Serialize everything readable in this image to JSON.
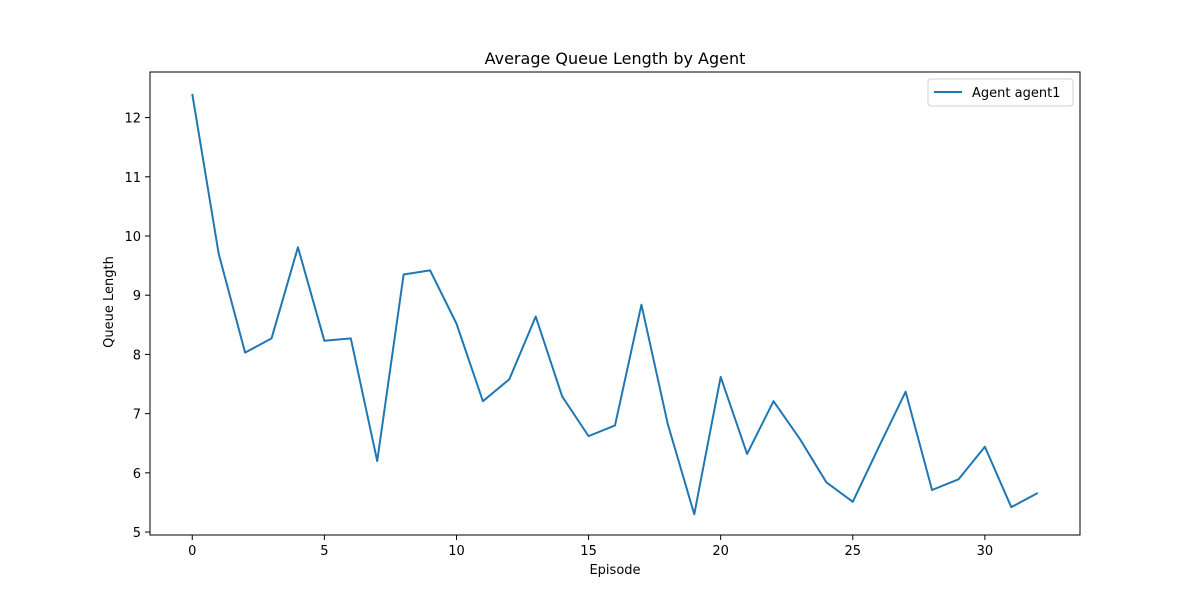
{
  "chart_data": {
    "type": "line",
    "title": "Average Queue Length by Agent",
    "xlabel": "Episode",
    "ylabel": "Queue Length",
    "xlim": [
      -1.6,
      33.6
    ],
    "ylim": [
      4.95,
      12.77
    ],
    "xticks": [
      0,
      5,
      10,
      15,
      20,
      25,
      30
    ],
    "yticks": [
      5,
      6,
      7,
      8,
      9,
      10,
      11,
      12
    ],
    "grid": false,
    "legend_position": "top-right",
    "series": [
      {
        "name": "Agent agent1",
        "color": "#1f77b4",
        "x": [
          0,
          1,
          2,
          3,
          4,
          5,
          6,
          7,
          8,
          9,
          10,
          11,
          12,
          13,
          14,
          15,
          16,
          17,
          18,
          19,
          20,
          21,
          22,
          23,
          24,
          25,
          26,
          27,
          28,
          29,
          30,
          31,
          32
        ],
        "y": [
          12.4,
          9.7,
          8.03,
          8.27,
          9.81,
          8.23,
          8.27,
          6.2,
          9.35,
          9.42,
          8.52,
          7.21,
          7.58,
          8.64,
          7.29,
          6.62,
          6.8,
          8.84,
          6.82,
          5.3,
          7.62,
          6.32,
          7.21,
          6.57,
          5.84,
          5.51,
          6.45,
          7.37,
          5.71,
          5.89,
          6.44,
          5.42,
          5.66
        ]
      }
    ]
  }
}
